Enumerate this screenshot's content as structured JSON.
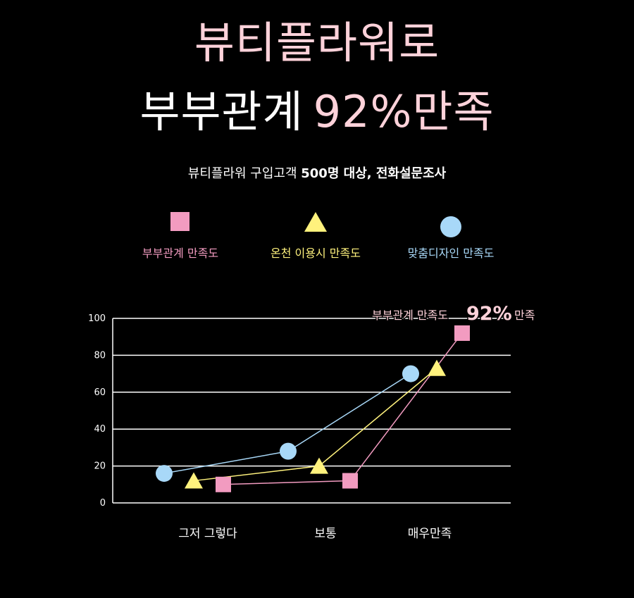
{
  "header": {
    "title_line1": "뷰티플라워로",
    "title_line2_prefix": "부부관계",
    "title_line2_highlight": "92%만족",
    "subtitle_normal": "뷰티플라워 구입고객 ",
    "subtitle_bold": "500명 대상, 전화설문조사"
  },
  "chart_data": {
    "type": "line",
    "categories": [
      "그저 그렇다",
      "보통",
      "매우만족"
    ],
    "ylim": [
      0,
      100
    ],
    "yticks": [
      "100",
      "80",
      "60",
      "40",
      "20",
      "0"
    ],
    "grid": true,
    "legend_position": "top-center",
    "series": [
      {
        "name": "부부관계 만족도",
        "marker": "square",
        "color": "#f29bc0",
        "values": [
          10,
          12,
          92
        ]
      },
      {
        "name": "온천 이용시 만족도",
        "marker": "triangle",
        "color": "#fff27d",
        "values": [
          12,
          20,
          73
        ]
      },
      {
        "name": "맞춤디자인 만족도",
        "marker": "circle",
        "color": "#a8d8f8",
        "values": [
          16,
          28,
          70
        ]
      }
    ],
    "annotation": {
      "prefix": "부부관계 만족도",
      "value": "92%",
      "suffix": "만족"
    }
  }
}
